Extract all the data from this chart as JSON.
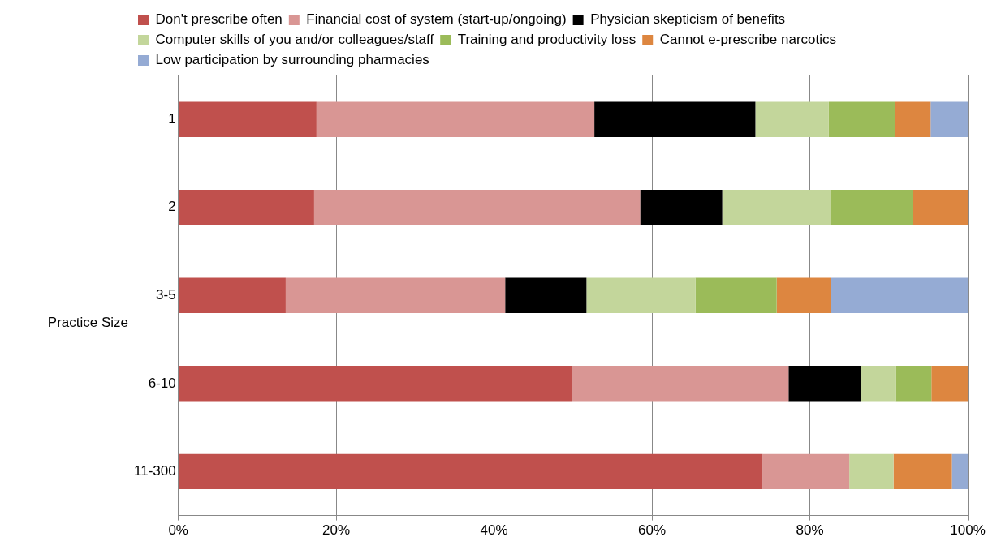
{
  "chart_data": {
    "type": "bar",
    "orientation": "horizontal",
    "stacked": true,
    "ylabel": "Practice Size",
    "categories": [
      "1",
      "2",
      "3-5",
      "6-10",
      "11-300"
    ],
    "series": [
      {
        "name": "Don't prescribe often",
        "color": "#c0504d",
        "values": [
          17.5,
          17.2,
          13.6,
          49.9,
          74.0
        ]
      },
      {
        "name": "Financial cost of system (start-up/ongoing)",
        "color": "#d99694",
        "values": [
          35.2,
          41.3,
          27.8,
          27.4,
          11.0
        ]
      },
      {
        "name": "Physician skepticism of benefits",
        "color": "#000000",
        "values": [
          20.4,
          10.4,
          10.3,
          9.2,
          0
        ]
      },
      {
        "name": "Computer skills of you and/or colleagues/staff",
        "color": "#c3d69b",
        "values": [
          9.3,
          13.8,
          13.8,
          4.4,
          5.6
        ]
      },
      {
        "name": "Training and productivity loss",
        "color": "#9bbb59",
        "values": [
          8.4,
          10.4,
          10.3,
          4.5,
          0
        ]
      },
      {
        "name": "Cannot e-prescribe narcotics",
        "color": "#dd8640",
        "values": [
          4.5,
          6.9,
          6.9,
          4.6,
          7.4
        ]
      },
      {
        "name": "Low participation by surrounding pharmacies",
        "color": "#95abd4",
        "values": [
          4.7,
          0,
          17.3,
          0,
          2.0
        ]
      }
    ],
    "xlim": [
      0,
      100
    ],
    "xticks": [
      {
        "value": 0,
        "label": "0%"
      },
      {
        "value": 20,
        "label": "20%"
      },
      {
        "value": 40,
        "label": "40%"
      },
      {
        "value": 60,
        "label": "60%"
      },
      {
        "value": 80,
        "label": "80%"
      },
      {
        "value": 100,
        "label": "100%"
      }
    ],
    "grid": "x",
    "legend": "top"
  }
}
